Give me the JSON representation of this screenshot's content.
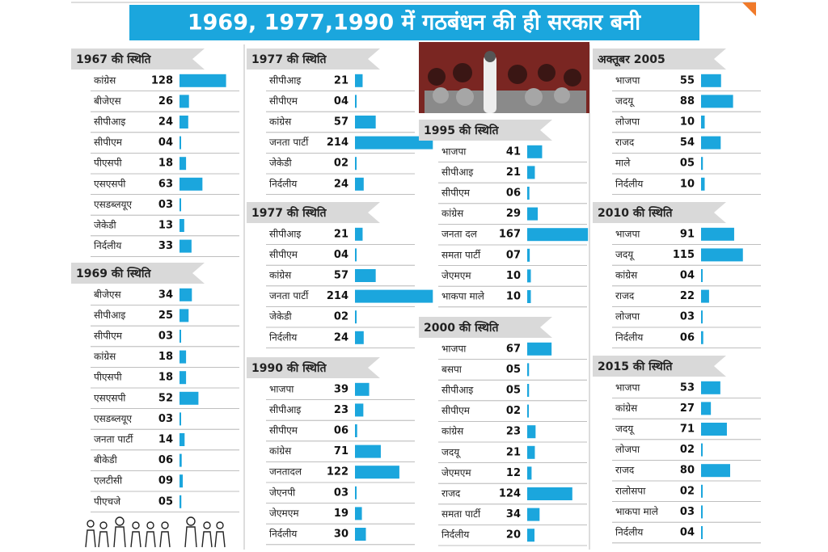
{
  "title": "1969, 1977,1990 में गठबंधन की ही सरकार बनी",
  "sections": [
    {
      "heading": "1967 की स्थिति",
      "parties": [
        "कांग्रेस",
        "बीजेएस",
        "सीपीआइ",
        "सीपीएम",
        "पीएसपी",
        "एसएसपी",
        "एसडब्लयूए",
        "जेकेडी",
        "निर्दलीय"
      ],
      "values": [
        128,
        26,
        24,
        4,
        18,
        63,
        3,
        13,
        33
      ],
      "value_labels": [
        "128",
        "26",
        "24",
        "04",
        "18",
        "63",
        "03",
        "13",
        "33"
      ]
    },
    {
      "heading": "1969 की स्थिति",
      "parties": [
        "बीजेएस",
        "सीपीआइ",
        "सीपीएम",
        "कांग्रेस",
        "पीएसपी",
        "एसएसपी",
        "एसडब्लयूए",
        "जनता पार्टी",
        "बीकेडी",
        "एलटीसी",
        "पीएचजे"
      ],
      "values": [
        34,
        25,
        3,
        18,
        18,
        52,
        3,
        14,
        6,
        9,
        5
      ],
      "value_labels": [
        "34",
        "25",
        "03",
        "18",
        "18",
        "52",
        "03",
        "14",
        "06",
        "09",
        "05"
      ]
    },
    {
      "heading": "1977 की स्थिति",
      "parties": [
        "सीपीआइ",
        "सीपीएम",
        "कांग्रेस",
        "जनता पार्टी",
        "जेकेडी",
        "निर्दलीय"
      ],
      "values": [
        21,
        4,
        57,
        214,
        2,
        24
      ],
      "value_labels": [
        "21",
        "04",
        "57",
        "214",
        "02",
        "24"
      ]
    },
    {
      "heading": "1977 की स्थिति",
      "parties": [
        "सीपीआइ",
        "सीपीएम",
        "कांग्रेस",
        "जनता पार्टी",
        "जेकेडी",
        "निर्दलीय"
      ],
      "values": [
        21,
        4,
        57,
        214,
        2,
        24
      ],
      "value_labels": [
        "21",
        "04",
        "57",
        "214",
        "02",
        "24"
      ]
    },
    {
      "heading": "1990 की स्थिति",
      "parties": [
        "भाजपा",
        "सीपीआइ",
        "सीपीएम",
        "कांग्रेस",
        "जनतादल",
        "जेएनपी",
        "जेएमएम",
        "निर्दलीय"
      ],
      "values": [
        39,
        23,
        6,
        71,
        122,
        3,
        19,
        30
      ],
      "value_labels": [
        "39",
        "23",
        "06",
        "71",
        "122",
        "03",
        "19",
        "30"
      ]
    },
    {
      "heading": "1995 की स्थिति",
      "parties": [
        "भाजपा",
        "सीपीआइ",
        "सीपीएम",
        "कांग्रेस",
        "जनता दल",
        "समता पार्टी",
        "जेएमएम",
        "भाकपा माले"
      ],
      "values": [
        41,
        21,
        6,
        29,
        167,
        7,
        10,
        10
      ],
      "value_labels": [
        "41",
        "21",
        "06",
        "29",
        "167",
        "07",
        "10",
        "10"
      ]
    },
    {
      "heading": "2000 की स्थिति",
      "parties": [
        "भाजपा",
        "बसपा",
        "सीपीआइ",
        "सीपीएम",
        "कांग्रेस",
        "जदयू",
        "जेएमएम",
        "राजद",
        "समता पार्टी",
        "निर्दलीय"
      ],
      "values": [
        67,
        5,
        5,
        2,
        23,
        21,
        12,
        124,
        34,
        20
      ],
      "value_labels": [
        "67",
        "05",
        "05",
        "02",
        "23",
        "21",
        "12",
        "124",
        "34",
        "20"
      ]
    },
    {
      "heading": "अक्तूबर 2005",
      "parties": [
        "भाजपा",
        "जदयू",
        "लोजपा",
        "राजद",
        "माले",
        "निर्दलीय"
      ],
      "values": [
        55,
        88,
        10,
        54,
        5,
        10
      ],
      "value_labels": [
        "55",
        "88",
        "10",
        "54",
        "05",
        "10"
      ]
    },
    {
      "heading": "2010 की स्थिति",
      "parties": [
        "भाजपा",
        "जदयू",
        "कांग्रेस",
        "राजद",
        "लोजपा",
        "निर्दलीय"
      ],
      "values": [
        91,
        115,
        4,
        22,
        3,
        6
      ],
      "value_labels": [
        "91",
        "115",
        "04",
        "22",
        "03",
        "06"
      ]
    },
    {
      "heading": "2015 की स्थिति",
      "parties": [
        "भाजपा",
        "कांग्रेस",
        "जदयू",
        "लोजपा",
        "राजद",
        "रालोसपा",
        "भाकपा माले",
        "निर्दलीय"
      ],
      "values": [
        53,
        27,
        71,
        2,
        80,
        2,
        3,
        4
      ],
      "value_labels": [
        "53",
        "27",
        "71",
        "02",
        "80",
        "02",
        "03",
        "04"
      ]
    }
  ]
}
